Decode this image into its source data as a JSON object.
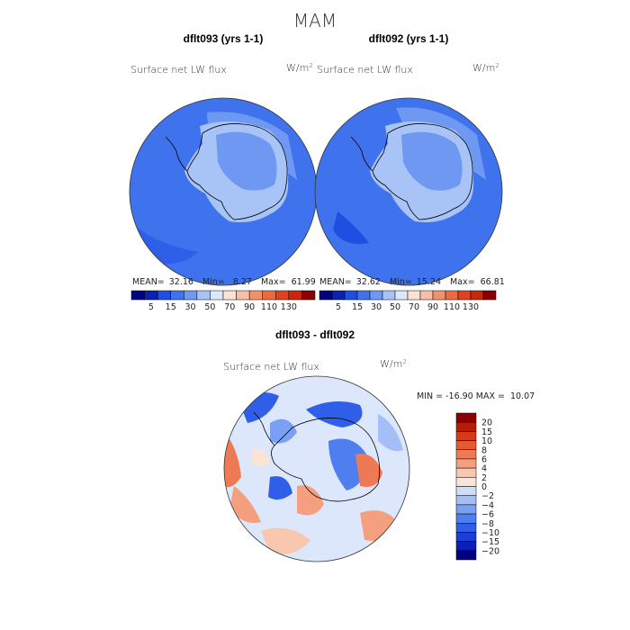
{
  "chart_data": {
    "type": "heatmap",
    "title": "MAM",
    "panels": [
      {
        "id": "left",
        "title": "dflt093 (yrs 1-1)",
        "field": "Surface net LW flux",
        "units": "W/m",
        "units_exp": "2",
        "stats": {
          "mean_label": "MEAN=",
          "mean": "32.16",
          "min_label": "Min=",
          "min": "8.27",
          "max_label": "Max=",
          "max": "61.99"
        }
      },
      {
        "id": "right",
        "title": "dflt092 (yrs 1-1)",
        "field": "Surface net LW flux",
        "units": "W/m",
        "units_exp": "2",
        "stats": {
          "mean_label": "MEAN=",
          "mean": "32.62",
          "min_label": "Min=",
          "min": "15.24",
          "max_label": "Max=",
          "max": "66.81"
        }
      },
      {
        "id": "diff",
        "title": "dflt093 - dflt092",
        "field": "Surface net LW flux",
        "units": "W/m",
        "units_exp": "2",
        "stats_text": "MIN = -16.90 MAX =  10.07"
      }
    ],
    "colorbar_abs": {
      "colors": [
        "#000080",
        "#0a22b0",
        "#1f4fe0",
        "#3f73ee",
        "#6f98f2",
        "#a8c3f6",
        "#dde7fb",
        "#fbe2d2",
        "#f7c0a6",
        "#f2926d",
        "#ea6a44",
        "#dd4322",
        "#c8270e",
        "#8a0000"
      ],
      "ticks": [
        "5",
        "15",
        "30",
        "50",
        "70",
        "90",
        "110",
        "130"
      ]
    },
    "colorbar_diff": {
      "colors": [
        "#000080",
        "#0a1fb5",
        "#1b3ed8",
        "#2f5fe8",
        "#4f7eef",
        "#7a9ff3",
        "#a4bff7",
        "#cfdcfa",
        "#fbe4d6",
        "#f8c7ae",
        "#f4a07f",
        "#ee7a55",
        "#e65a32",
        "#d63a16",
        "#b81c06",
        "#8b0000"
      ],
      "ticks": [
        "20",
        "15",
        "10",
        "8",
        "6",
        "4",
        "2",
        "0",
        "−2",
        "−4",
        "−6",
        "−8",
        "−10",
        "−15",
        "−20"
      ]
    }
  }
}
